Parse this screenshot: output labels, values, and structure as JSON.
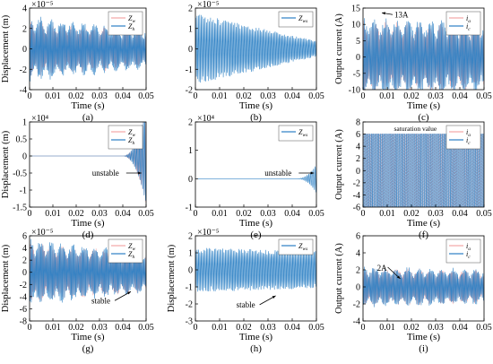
{
  "chart_data": [
    {
      "type": "line",
      "panel_label": "(a)",
      "xlabel": "Time (s)",
      "ylabel": "Displacement (m)",
      "exponent_label": "×10⁻⁵",
      "xlim": [
        0,
        0.05
      ],
      "ylim": [
        -4,
        4
      ],
      "xticks": [
        "0",
        "0.01",
        "0.02",
        "0.03",
        "0.04",
        "0.05"
      ],
      "yticks": [
        "-4",
        "-2",
        "0",
        "2",
        "4"
      ],
      "legend": {
        "position": "top-right",
        "entries": [
          {
            "sub": "w",
            "color": "#f4a6a6"
          },
          {
            "sub": "h",
            "color": "#2b7fc4"
          }
        ]
      },
      "series": [
        {
          "amp_start": 2.5,
          "amp_end": 1.6,
          "freq_hz": 215,
          "carrier_hz": 1900,
          "color": "#f4a6a6"
        },
        {
          "amp_start": 2.9,
          "amp_end": 1.8,
          "freq_hz": 215,
          "carrier_hz": 2100,
          "color": "#2b7fc4"
        }
      ]
    },
    {
      "type": "line",
      "panel_label": "(b)",
      "xlabel": "Time (s)",
      "ylabel": "",
      "exponent_label": "×10⁻⁵",
      "xlim": [
        0,
        0.05
      ],
      "ylim": [
        -2,
        2
      ],
      "xticks": [
        "0",
        "0.01",
        "0.02",
        "0.03",
        "0.04",
        "0.05"
      ],
      "yticks": [
        "-2",
        "-1",
        "0",
        "1",
        "2"
      ],
      "legend": {
        "position": "top-right",
        "entries": [
          {
            "sub": "ws",
            "color": "#2b7fc4"
          }
        ]
      },
      "series": [
        {
          "amp_start": 1.6,
          "amp_end": 0.35,
          "freq_hz": 0,
          "carrier_hz": 1800,
          "color": "#2b7fc4"
        }
      ]
    },
    {
      "type": "line",
      "panel_label": "(c)",
      "xlabel": "Time (s)",
      "ylabel": "Output current (A)",
      "exponent_label": "",
      "xlim": [
        0,
        0.05
      ],
      "ylim": [
        -10,
        15
      ],
      "xticks": [
        "0",
        "0.01",
        "0.02",
        "0.03",
        "0.04",
        "0.05"
      ],
      "yticks": [
        "-10",
        "-5",
        "0",
        "5",
        "10",
        "15"
      ],
      "legend": {
        "position": "top-right",
        "entries": [
          {
            "sub": "a",
            "color": "#f4a6a6"
          },
          {
            "sub": "c",
            "color": "#2b7fc4"
          }
        ]
      },
      "annotation": {
        "text": "13A",
        "x": 0.01,
        "y": 13
      },
      "series": [
        {
          "amp_start": 10,
          "amp_end": 9,
          "freq_hz": 215,
          "carrier_hz": 1900,
          "color": "#f4a6a6"
        },
        {
          "amp_start": 11,
          "amp_end": 10,
          "freq_hz": 215,
          "carrier_hz": 2100,
          "color": "#2b7fc4"
        }
      ]
    },
    {
      "type": "line",
      "panel_label": "(d)",
      "xlabel": "Time (s)",
      "ylabel": "Displacement (m)",
      "exponent_label": "×10⁴",
      "xlim": [
        0,
        0.05
      ],
      "ylim": [
        -1.5,
        1
      ],
      "xticks": [
        "0",
        "0.01",
        "0.02",
        "0.03",
        "0.04",
        "0.05"
      ],
      "yticks": [
        "-1.5",
        "-1",
        "-0.5",
        "0",
        "0.5",
        "1"
      ],
      "legend": {
        "position": "top-right",
        "entries": [
          {
            "sub": "w",
            "color": "#f4a6a6"
          },
          {
            "sub": "h",
            "color": "#2b7fc4"
          }
        ]
      },
      "annotation": {
        "text": "unstable",
        "x": 0.048,
        "y": -0.5
      },
      "series": [
        {
          "grow_from": 0.04,
          "amp_end": 1.4,
          "carrier_hz": 1500,
          "color": "#f4a6a6"
        },
        {
          "grow_from": 0.04,
          "amp_end": 1.4,
          "carrier_hz": 1700,
          "color": "#2b7fc4"
        }
      ]
    },
    {
      "type": "line",
      "panel_label": "(e)",
      "xlabel": "Time (s)",
      "ylabel": "",
      "exponent_label": "×10⁴",
      "xlim": [
        0,
        0.05
      ],
      "ylim": [
        -1,
        2
      ],
      "xticks": [
        "0",
        "0.01",
        "0.02",
        "0.03",
        "0.04",
        "0.05"
      ],
      "yticks": [
        "-1",
        "0",
        "1",
        "2"
      ],
      "legend": {
        "position": "top-right",
        "entries": [
          {
            "sub": "ws",
            "color": "#2b7fc4"
          }
        ]
      },
      "annotation": {
        "text": "unstable",
        "x": 0.049,
        "y": 0.2
      },
      "series": [
        {
          "grow_from": 0.042,
          "amp_end": 0.5,
          "carrier_hz": 1500,
          "color": "#2b7fc4"
        }
      ]
    },
    {
      "type": "line",
      "panel_label": "(f)",
      "xlabel": "Time (s)",
      "ylabel": "Output current (A)",
      "exponent_label": "",
      "xlim": [
        0,
        0.05
      ],
      "ylim": [
        -6,
        8
      ],
      "xticks": [
        "0",
        "0.01",
        "0.02",
        "0.03",
        "0.04",
        "0.05"
      ],
      "yticks": [
        "-6",
        "-4",
        "-2",
        "0",
        "2",
        "4",
        "6",
        "8"
      ],
      "legend": {
        "position": "top-right",
        "entries": [
          {
            "sub": "a",
            "color": "#f4a6a6"
          },
          {
            "sub": "c",
            "color": "#2b7fc4"
          }
        ]
      },
      "annotation": {
        "text": "saturation value",
        "x": 0.015,
        "y": 6.5
      },
      "series": [
        {
          "saturation": 6,
          "carrier_hz": 1400,
          "color": "#f4a6a6"
        },
        {
          "saturation": 6,
          "carrier_hz": 1400,
          "color": "#2b7fc4"
        }
      ]
    },
    {
      "type": "line",
      "panel_label": "(g)",
      "xlabel": "Time (s)",
      "ylabel": "Displacement (m)",
      "exponent_label": "×10⁻⁵",
      "xlim": [
        0,
        0.05
      ],
      "ylim": [
        -8,
        6
      ],
      "xticks": [
        "0",
        "0.01",
        "0.02",
        "0.03",
        "0.04",
        "0.05"
      ],
      "yticks": [
        "-8",
        "-6",
        "-4",
        "-2",
        "0",
        "2",
        "4",
        "6"
      ],
      "legend": {
        "position": "top-right",
        "entries": [
          {
            "sub": "w",
            "color": "#f4a6a6"
          },
          {
            "sub": "h",
            "color": "#2b7fc4"
          }
        ]
      },
      "annotation": {
        "text": "stable",
        "x": 0.015,
        "y": -4.8
      },
      "series": [
        {
          "amp_start": 4.5,
          "amp_end": 3,
          "freq_hz": 215,
          "carrier_hz": 1900,
          "color": "#f4a6a6"
        },
        {
          "amp_start": 5,
          "amp_end": 3.2,
          "freq_hz": 215,
          "carrier_hz": 2100,
          "color": "#2b7fc4"
        }
      ]
    },
    {
      "type": "line",
      "panel_label": "(h)",
      "xlabel": "Time (s)",
      "ylabel": "Displacement (m)",
      "exponent_label": "×10⁻⁵",
      "xlim": [
        0,
        0.05
      ],
      "ylim": [
        -3,
        2
      ],
      "xticks": [
        "0",
        "0.01",
        "0.02",
        "0.03",
        "0.04",
        "0.05"
      ],
      "yticks": [
        "-3",
        "-2",
        "-1",
        "0",
        "1",
        "2"
      ],
      "legend": {
        "position": "top-right",
        "entries": [
          {
            "sub": "ws",
            "color": "#2b7fc4"
          }
        ]
      },
      "annotation": {
        "text": "stable",
        "x": 0.028,
        "y": -2.1
      },
      "series": [
        {
          "amp_start": 1.2,
          "amp_end": 1.0,
          "freq_hz": 0,
          "carrier_hz": 1800,
          "color": "#2b7fc4"
        }
      ]
    },
    {
      "type": "line",
      "panel_label": "(i)",
      "xlabel": "Time (s)",
      "ylabel": "Output current (A)",
      "exponent_label": "",
      "xlim": [
        0,
        0.05
      ],
      "ylim": [
        -4,
        6
      ],
      "xticks": [
        "0",
        "0.01",
        "0.02",
        "0.03",
        "0.04",
        "0.05"
      ],
      "yticks": [
        "-4",
        "-2",
        "0",
        "2",
        "4",
        "6"
      ],
      "legend": {
        "position": "top-right",
        "entries": [
          {
            "sub": "a",
            "color": "#f4a6a6"
          },
          {
            "sub": "c",
            "color": "#2b7fc4"
          }
        ]
      },
      "annotation": {
        "text": "2A",
        "x": 0.008,
        "y": 2
      },
      "series": [
        {
          "amp_start": 2,
          "amp_end": 1.8,
          "freq_hz": 215,
          "carrier_hz": 1900,
          "color": "#f4a6a6"
        },
        {
          "amp_start": 2.2,
          "amp_end": 1.9,
          "freq_hz": 215,
          "carrier_hz": 2100,
          "color": "#2b7fc4"
        }
      ]
    }
  ]
}
